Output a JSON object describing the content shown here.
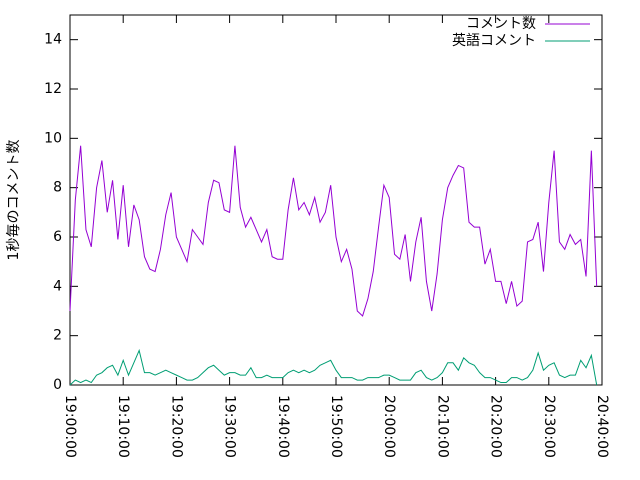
{
  "chart_data": {
    "type": "line",
    "ylabel": "1秒毎のコメント数",
    "x": [
      "19:00:00",
      "19:01:00",
      "19:02:00",
      "19:03:00",
      "19:04:00",
      "19:05:00",
      "19:06:00",
      "19:07:00",
      "19:08:00",
      "19:09:00",
      "19:10:00",
      "19:11:00",
      "19:12:00",
      "19:13:00",
      "19:14:00",
      "19:15:00",
      "19:16:00",
      "19:17:00",
      "19:18:00",
      "19:19:00",
      "19:20:00",
      "19:21:00",
      "19:22:00",
      "19:23:00",
      "19:24:00",
      "19:25:00",
      "19:26:00",
      "19:27:00",
      "19:28:00",
      "19:29:00",
      "19:30:00",
      "19:31:00",
      "19:32:00",
      "19:33:00",
      "19:34:00",
      "19:35:00",
      "19:36:00",
      "19:37:00",
      "19:38:00",
      "19:39:00",
      "19:40:00",
      "19:41:00",
      "19:42:00",
      "19:43:00",
      "19:44:00",
      "19:45:00",
      "19:46:00",
      "19:47:00",
      "19:48:00",
      "19:49:00",
      "19:50:00",
      "19:51:00",
      "19:52:00",
      "19:53:00",
      "19:54:00",
      "19:55:00",
      "19:56:00",
      "19:57:00",
      "19:58:00",
      "19:59:00",
      "20:00:00",
      "20:01:00",
      "20:02:00",
      "20:03:00",
      "20:04:00",
      "20:05:00",
      "20:06:00",
      "20:07:00",
      "20:08:00",
      "20:09:00",
      "20:10:00",
      "20:11:00",
      "20:12:00",
      "20:13:00",
      "20:14:00",
      "20:15:00",
      "20:16:00",
      "20:17:00",
      "20:18:00",
      "20:19:00",
      "20:20:00",
      "20:21:00",
      "20:22:00",
      "20:23:00",
      "20:24:00",
      "20:25:00",
      "20:26:00",
      "20:27:00",
      "20:28:00",
      "20:29:00",
      "20:30:00",
      "20:31:00",
      "20:32:00",
      "20:33:00",
      "20:34:00",
      "20:35:00",
      "20:36:00",
      "20:37:00",
      "20:38:00",
      "20:39:00"
    ],
    "series": [
      {
        "name": "コメント数",
        "color": "#9400d3",
        "values": [
          3,
          7.5,
          9.7,
          6.3,
          5.6,
          8,
          9.1,
          7,
          8.3,
          5.9,
          8.1,
          5.6,
          7.3,
          6.7,
          5.2,
          4.7,
          4.6,
          5.5,
          6.9,
          7.8,
          6,
          5.5,
          5,
          6.3,
          6,
          5.7,
          7.4,
          8.3,
          8.2,
          7.1,
          7,
          9.7,
          7.2,
          6.4,
          6.8,
          6.3,
          5.8,
          6.3,
          5.2,
          5.1,
          5.1,
          7.1,
          8.4,
          7.1,
          7.4,
          6.9,
          7.6,
          6.6,
          7,
          8.1,
          6,
          5,
          5.5,
          4.7,
          3,
          2.8,
          3.5,
          4.6,
          6.4,
          8.1,
          7.6,
          5.3,
          5.1,
          6.1,
          4.2,
          5.8,
          6.8,
          4.2,
          3,
          4.5,
          6.7,
          8,
          8.5,
          8.9,
          8.8,
          6.6,
          6.4,
          6.4,
          4.9,
          5.5,
          4.2,
          4.2,
          3.3,
          4.2,
          3.2,
          3.4,
          5.8,
          5.9,
          6.6,
          4.6,
          7.4,
          9.5,
          5.8,
          5.5,
          6.1,
          5.7,
          5.9,
          4.4,
          9.5,
          4
        ]
      },
      {
        "name": "英語コメント",
        "color": "#009e73",
        "values": [
          0,
          0.2,
          0.1,
          0.2,
          0.1,
          0.4,
          0.5,
          0.7,
          0.8,
          0.4,
          1.0,
          0.4,
          0.9,
          1.4,
          0.5,
          0.5,
          0.4,
          0.5,
          0.6,
          0.5,
          0.4,
          0.3,
          0.2,
          0.2,
          0.3,
          0.5,
          0.7,
          0.8,
          0.6,
          0.4,
          0.5,
          0.5,
          0.4,
          0.4,
          0.7,
          0.3,
          0.3,
          0.4,
          0.3,
          0.3,
          0.3,
          0.5,
          0.6,
          0.5,
          0.6,
          0.5,
          0.6,
          0.8,
          0.9,
          1.0,
          0.6,
          0.3,
          0.3,
          0.3,
          0.2,
          0.2,
          0.3,
          0.3,
          0.3,
          0.4,
          0.4,
          0.3,
          0.2,
          0.2,
          0.2,
          0.5,
          0.6,
          0.3,
          0.2,
          0.3,
          0.5,
          0.9,
          0.9,
          0.6,
          1.1,
          0.9,
          0.8,
          0.5,
          0.3,
          0.3,
          0.2,
          0.1,
          0.1,
          0.3,
          0.3,
          0.2,
          0.3,
          0.6,
          1.3,
          0.6,
          0.8,
          0.9,
          0.4,
          0.3,
          0.4,
          0.4,
          1.0,
          0.7,
          1.2,
          0
        ]
      }
    ],
    "xlim": [
      "19:00:00",
      "20:40:00"
    ],
    "xticks": [
      "19:00:00",
      "19:10:00",
      "19:20:00",
      "19:30:00",
      "19:40:00",
      "19:50:00",
      "20:00:00",
      "20:10:00",
      "20:20:00",
      "20:30:00",
      "20:40:00"
    ],
    "ylim": [
      0,
      15
    ],
    "yticks": [
      0,
      2,
      4,
      6,
      8,
      10,
      12,
      14
    ],
    "grid": false,
    "legend": "upper right"
  }
}
